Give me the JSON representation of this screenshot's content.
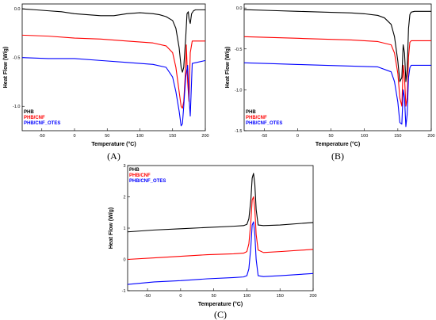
{
  "chart_data": [
    {
      "panel": "(A)",
      "type": "line",
      "xlabel": "Temperature (°C)",
      "ylabel": "Heat Flow (W/g)",
      "xlim": [
        -80,
        200
      ],
      "ylim": [
        -1.25,
        0.05
      ],
      "xticks": [
        -50,
        0,
        50,
        100,
        150,
        200
      ],
      "xtick_labels": [
        "-50",
        "0",
        "50",
        "100",
        "150",
        "200"
      ],
      "yticks": [
        -1.0,
        -0.5,
        0.0
      ],
      "ytick_labels": [
        "-1.0",
        "-0.5",
        "0.0"
      ],
      "legend_position": "bottom-left",
      "series": [
        {
          "name": "PHB",
          "color": "#000000",
          "x": [
            -80,
            -60,
            -40,
            -20,
            0,
            20,
            40,
            60,
            80,
            100,
            120,
            130,
            140,
            150,
            155,
            160,
            163,
            165,
            167,
            170,
            172,
            174,
            175,
            177,
            179,
            182,
            185,
            200
          ],
          "y": [
            0.0,
            -0.01,
            -0.02,
            -0.03,
            -0.05,
            -0.06,
            -0.07,
            -0.07,
            -0.05,
            -0.04,
            -0.05,
            -0.06,
            -0.08,
            -0.12,
            -0.2,
            -0.4,
            -0.6,
            -0.65,
            -0.6,
            -0.3,
            -0.05,
            -0.03,
            -0.1,
            -0.15,
            -0.05,
            -0.02,
            -0.01,
            -0.01
          ]
        },
        {
          "name": "PHB/CNF",
          "color": "#ff0000",
          "x": [
            -80,
            -40,
            0,
            40,
            80,
            120,
            140,
            150,
            155,
            160,
            163,
            165,
            167,
            170,
            171,
            173,
            175,
            177,
            180,
            200
          ],
          "y": [
            -0.27,
            -0.28,
            -0.3,
            -0.31,
            -0.33,
            -0.35,
            -0.38,
            -0.45,
            -0.6,
            -0.85,
            -1.0,
            -1.02,
            -0.95,
            -0.6,
            -0.37,
            -0.75,
            -0.95,
            -0.45,
            -0.33,
            -0.33
          ]
        },
        {
          "name": "PHB/CNF_OTES",
          "color": "#0000ff",
          "x": [
            -80,
            -40,
            0,
            40,
            80,
            120,
            140,
            150,
            155,
            160,
            163,
            165,
            167,
            170,
            173,
            175,
            177,
            180,
            200
          ],
          "y": [
            -0.5,
            -0.51,
            -0.51,
            -0.53,
            -0.55,
            -0.57,
            -0.6,
            -0.7,
            -0.85,
            -1.05,
            -1.2,
            -1.18,
            -1.0,
            -0.7,
            -0.58,
            -0.9,
            -1.1,
            -0.56,
            -0.53
          ]
        }
      ]
    },
    {
      "panel": "(B)",
      "type": "line",
      "xlabel": "Temperature (°C)",
      "ylabel": "Heat Flow (W/g)",
      "xlim": [
        -80,
        200
      ],
      "ylim": [
        -1.5,
        0.05
      ],
      "xticks": [
        -50,
        0,
        50,
        100,
        150,
        200
      ],
      "xtick_labels": [
        "-50",
        "0",
        "50",
        "100",
        "150",
        "200"
      ],
      "yticks": [
        -1.5,
        -1.0,
        -0.5,
        0.0
      ],
      "ytick_labels": [
        "-1.5",
        "-1.0",
        "-0.5",
        "0.0"
      ],
      "legend_position": "bottom-left",
      "series": [
        {
          "name": "PHB",
          "color": "#000000",
          "x": [
            -80,
            -40,
            0,
            40,
            80,
            100,
            120,
            130,
            140,
            145,
            150,
            153,
            156,
            158,
            160,
            162,
            164,
            166,
            168,
            170,
            175,
            200
          ],
          "y": [
            -0.02,
            -0.03,
            -0.04,
            -0.05,
            -0.06,
            -0.07,
            -0.09,
            -0.12,
            -0.2,
            -0.35,
            -0.65,
            -0.9,
            -0.85,
            -0.45,
            -0.55,
            -0.9,
            -0.75,
            -0.25,
            -0.08,
            -0.05,
            -0.04,
            -0.04
          ]
        },
        {
          "name": "PHB/CNF",
          "color": "#ff0000",
          "x": [
            -80,
            -40,
            0,
            40,
            80,
            120,
            140,
            145,
            150,
            153,
            156,
            158,
            160,
            162,
            164,
            166,
            168,
            170,
            175,
            200
          ],
          "y": [
            -0.35,
            -0.36,
            -0.37,
            -0.38,
            -0.39,
            -0.41,
            -0.45,
            -0.55,
            -0.8,
            -1.1,
            -1.2,
            -0.7,
            -0.85,
            -1.2,
            -1.1,
            -0.6,
            -0.42,
            -0.4,
            -0.4,
            -0.4
          ]
        },
        {
          "name": "PHB/CNF_OTES",
          "color": "#0000ff",
          "x": [
            -80,
            -40,
            0,
            40,
            80,
            120,
            140,
            145,
            150,
            153,
            156,
            158,
            160,
            162,
            164,
            166,
            168,
            170,
            175,
            200
          ],
          "y": [
            -0.67,
            -0.68,
            -0.69,
            -0.7,
            -0.71,
            -0.72,
            -0.78,
            -0.9,
            -1.15,
            -1.4,
            -1.42,
            -1.0,
            -1.1,
            -1.45,
            -1.3,
            -0.85,
            -0.73,
            -0.7,
            -0.7,
            -0.7
          ]
        }
      ]
    },
    {
      "panel": "(C)",
      "type": "line",
      "xlabel": "Temperature (°C)",
      "ylabel": "Heat Flow (W/g)",
      "xlim": [
        -80,
        200
      ],
      "ylim": [
        -1,
        3
      ],
      "xticks": [
        -50,
        0,
        50,
        100,
        150,
        200
      ],
      "xtick_labels": [
        "-50",
        "0",
        "50",
        "100",
        "150",
        "200"
      ],
      "yticks": [
        -1,
        0,
        1,
        2,
        3
      ],
      "ytick_labels": [
        "-1",
        "0",
        "1",
        "2",
        "3"
      ],
      "legend_position": "top-left",
      "series": [
        {
          "name": "PHB",
          "color": "#000000",
          "x": [
            -80,
            -40,
            0,
            40,
            80,
            95,
            100,
            103,
            106,
            108,
            110,
            112,
            114,
            117,
            125,
            150,
            200
          ],
          "y": [
            0.88,
            0.94,
            0.98,
            1.02,
            1.06,
            1.08,
            1.12,
            1.3,
            1.9,
            2.6,
            2.75,
            2.4,
            1.6,
            1.1,
            1.08,
            1.1,
            1.18
          ]
        },
        {
          "name": "PHB/CNF",
          "color": "#ff0000",
          "x": [
            -80,
            -40,
            0,
            40,
            80,
            95,
            100,
            103,
            106,
            108,
            110,
            112,
            114,
            117,
            125,
            150,
            200
          ],
          "y": [
            0.0,
            0.05,
            0.1,
            0.15,
            0.18,
            0.2,
            0.25,
            0.5,
            1.2,
            1.9,
            2.0,
            1.6,
            0.8,
            0.3,
            0.22,
            0.25,
            0.32
          ]
        },
        {
          "name": "PHB/CNF_OTES",
          "color": "#0000ff",
          "x": [
            -80,
            -40,
            0,
            40,
            80,
            95,
            100,
            103,
            106,
            108,
            110,
            112,
            114,
            117,
            125,
            150,
            200
          ],
          "y": [
            -0.8,
            -0.72,
            -0.68,
            -0.62,
            -0.58,
            -0.56,
            -0.52,
            -0.3,
            0.4,
            1.1,
            1.2,
            0.8,
            0.0,
            -0.52,
            -0.55,
            -0.52,
            -0.45
          ]
        }
      ]
    }
  ]
}
